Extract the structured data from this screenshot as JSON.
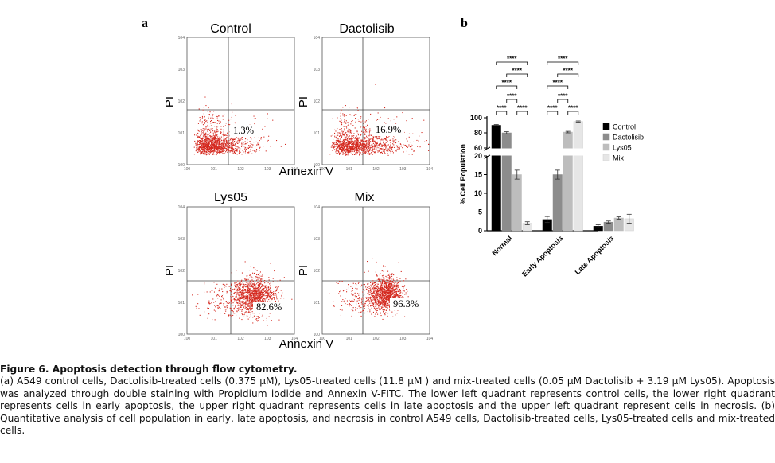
{
  "panel_a": {
    "label": "a",
    "x_axis_title": "Annexin V",
    "y_axis_title": "PI",
    "plots": [
      {
        "title": "Control",
        "quadrant_label": "1.3%"
      },
      {
        "title": "Dactolisib",
        "quadrant_label": "16.9%"
      },
      {
        "title": "Lys05",
        "quadrant_label": "82.6%"
      },
      {
        "title": "Mix",
        "quadrant_label": "96.3%"
      }
    ]
  },
  "chart_data": {
    "type": "bar",
    "panel_label": "b",
    "ylabel": "% Cell Population",
    "y_break": {
      "lower": [
        0,
        20
      ],
      "upper": [
        60,
        100
      ]
    },
    "y_ticks": [
      0,
      5,
      10,
      15,
      20,
      60,
      80,
      100
    ],
    "categories": [
      "Normal",
      "Early Apoptosis",
      "Late Apoptosis"
    ],
    "series": [
      {
        "name": "Control",
        "color": "#000000",
        "values": [
          90,
          3,
          1.2
        ],
        "errors": [
          1,
          0.8,
          0.4
        ]
      },
      {
        "name": "Dactolisib",
        "color": "#8c8c8c",
        "values": [
          80,
          15,
          2.3
        ],
        "errors": [
          1.5,
          1.2,
          0.3
        ]
      },
      {
        "name": "Lys05",
        "color": "#bdbdbd",
        "values": [
          15,
          81,
          3.4
        ],
        "errors": [
          1.2,
          1,
          0.3
        ]
      },
      {
        "name": "Mix",
        "color": "#e6e6e6",
        "values": [
          2,
          95,
          3.2
        ],
        "errors": [
          0.4,
          0.8,
          1.2
        ]
      }
    ],
    "significance_label": "****"
  },
  "caption": {
    "title": "Figure 6. Apoptosis detection through flow cytometry.",
    "body": "(a) A549 control cells, Dactolisib-treated cells (0.375 µM), Lys05-treated cells (11.8 µM ) and mix-treated cells (0.05 µM Dactolisib + 3.19 µM Lys05). Apoptosis was analyzed through double staining with Propidium iodide and Annexin V-FITC. The lower left quadrant represents control cells, the lower right quadrant represents cells in early apoptosis, the upper right quadrant represents cells in late apoptosis and the upper left quadrant represent cells in necrosis. (b) Quantitative analysis of cell population in early, late apoptosis, and necrosis in control A549 cells, Dactolisib-treated cells, Lys05-treated cells and mix-treated cells."
  }
}
